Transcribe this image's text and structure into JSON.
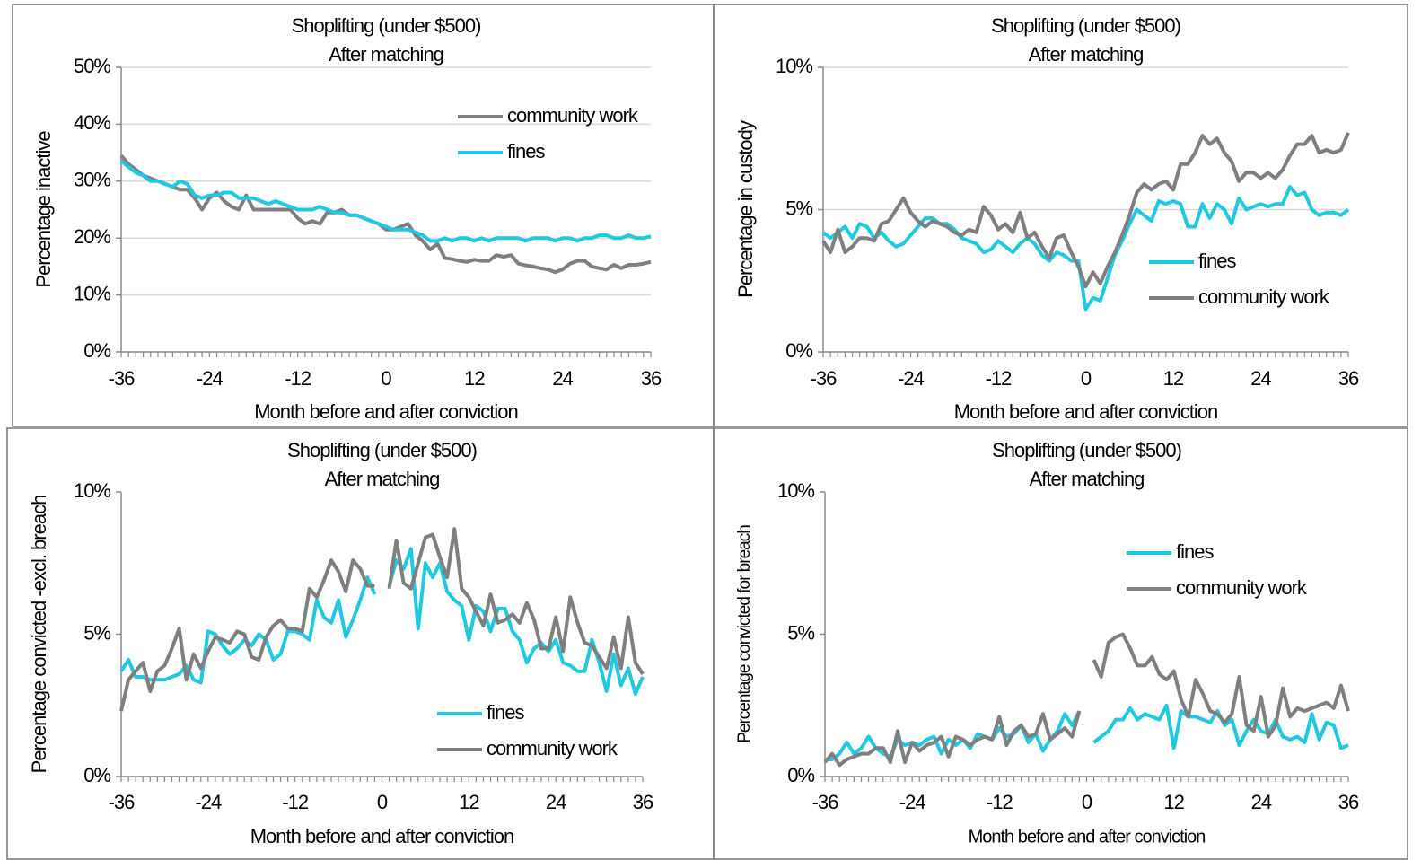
{
  "chart_data": [
    {
      "type": "line",
      "title": "Shoplifting (under  $500)",
      "subtitle": "After matching",
      "ylabel": "Percentage inactive",
      "xlabel": "Month before and after conviction",
      "x": [
        -36,
        -35,
        -34,
        -33,
        -32,
        -31,
        -30,
        -29,
        -28,
        -27,
        -26,
        -25,
        -24,
        -23,
        -22,
        -21,
        -20,
        -19,
        -18,
        -17,
        -16,
        -15,
        -14,
        -13,
        -12,
        -11,
        -10,
        -9,
        -8,
        -7,
        -6,
        -5,
        -4,
        -3,
        -2,
        -1,
        0,
        1,
        2,
        3,
        4,
        5,
        6,
        7,
        8,
        9,
        10,
        11,
        12,
        13,
        14,
        15,
        16,
        17,
        18,
        19,
        20,
        21,
        22,
        23,
        24,
        25,
        26,
        27,
        28,
        29,
        30,
        31,
        32,
        33,
        34,
        35,
        36
      ],
      "xlim": [
        -36,
        36
      ],
      "xticks": [
        -36,
        -24,
        -12,
        0,
        12,
        24,
        36
      ],
      "ylim": [
        0,
        50
      ],
      "yticks": [
        {
          "value": 0,
          "label": "0%"
        },
        {
          "value": 10,
          "label": "10%"
        },
        {
          "value": 20,
          "label": "20%"
        },
        {
          "value": 30,
          "label": "30%"
        },
        {
          "value": 40,
          "label": "40%"
        },
        {
          "value": 50,
          "label": "50%"
        }
      ],
      "grid": true,
      "series": [
        {
          "name": "community work",
          "color": "#7f7f7f",
          "values": [
            34.5,
            33,
            32,
            31,
            30.5,
            30,
            29.5,
            29,
            28.5,
            28.5,
            27,
            25,
            27,
            28,
            26.5,
            25.5,
            25,
            27.5,
            25,
            25,
            25,
            25,
            25,
            25,
            23.5,
            22.5,
            23,
            22.5,
            24.5,
            24.5,
            25,
            24,
            24,
            23.5,
            23,
            22.5,
            21.5,
            21.5,
            22,
            22.5,
            20.5,
            19.5,
            18,
            19,
            16.5,
            16.3,
            16,
            15.8,
            16.2,
            16,
            16,
            17,
            16.7,
            17,
            15.5,
            15.2,
            15,
            14.7,
            14.5,
            14,
            14.5,
            15.5,
            16,
            16,
            15,
            14.7,
            14.5,
            15.3,
            14.7,
            15.3,
            15.3,
            15.5,
            15.8
          ]
        },
        {
          "name": "fines",
          "color": "#21c9e0",
          "values": [
            33.5,
            32.5,
            31.5,
            31,
            30,
            30,
            29.5,
            29,
            30,
            29.5,
            27.5,
            27,
            27.5,
            27.5,
            28,
            28,
            27,
            27,
            27,
            26.5,
            26,
            26.5,
            26,
            25.5,
            25,
            25,
            25,
            25.5,
            25,
            24.5,
            24.5,
            24,
            24,
            23.5,
            23,
            22.5,
            22,
            21.5,
            21.5,
            21.5,
            21,
            20.5,
            19.5,
            19.5,
            20,
            19.5,
            20,
            20,
            19.5,
            20,
            19.5,
            20,
            20,
            20,
            20,
            19.5,
            20,
            20,
            20,
            19.5,
            20,
            20,
            19.5,
            20,
            20,
            20.5,
            20.5,
            20,
            20,
            20.5,
            20,
            20,
            20.3
          ]
        }
      ]
    },
    {
      "type": "line",
      "title": "Shoplifting (under  $500)",
      "subtitle": "After matching",
      "ylabel": "Percentage in custody",
      "xlabel": "Month before and after conviction",
      "x": [
        -36,
        -35,
        -34,
        -33,
        -32,
        -31,
        -30,
        -29,
        -28,
        -27,
        -26,
        -25,
        -24,
        -23,
        -22,
        -21,
        -20,
        -19,
        -18,
        -17,
        -16,
        -15,
        -14,
        -13,
        -12,
        -11,
        -10,
        -9,
        -8,
        -7,
        -6,
        -5,
        -4,
        -3,
        -2,
        -1,
        0,
        1,
        2,
        3,
        4,
        5,
        6,
        7,
        8,
        9,
        10,
        11,
        12,
        13,
        14,
        15,
        16,
        17,
        18,
        19,
        20,
        21,
        22,
        23,
        24,
        25,
        26,
        27,
        28,
        29,
        30,
        31,
        32,
        33,
        34,
        35,
        36
      ],
      "xlim": [
        -36,
        36
      ],
      "xticks": [
        -36,
        -24,
        -12,
        0,
        12,
        24,
        36
      ],
      "ylim": [
        0,
        10
      ],
      "yticks": [
        {
          "value": 0,
          "label": "0%"
        },
        {
          "value": 5,
          "label": "5%"
        },
        {
          "value": 10,
          "label": "10%"
        }
      ],
      "grid": true,
      "series": [
        {
          "name": "fines",
          "color": "#21c9e0",
          "values": [
            4.2,
            4.0,
            4.2,
            4.4,
            4.0,
            4.5,
            4.4,
            4.0,
            4.2,
            3.9,
            3.7,
            3.8,
            4.1,
            4.4,
            4.7,
            4.7,
            4.5,
            4.5,
            4.3,
            4.0,
            3.9,
            3.8,
            3.5,
            3.6,
            3.9,
            3.7,
            3.5,
            3.8,
            4.0,
            3.8,
            3.4,
            3.2,
            3.5,
            3.4,
            3.2,
            3.2,
            1.5,
            1.9,
            1.8,
            2.6,
            3.4,
            3.9,
            4.5,
            5.0,
            4.8,
            4.6,
            5.3,
            5.2,
            5.3,
            5.2,
            4.4,
            4.4,
            5.2,
            4.7,
            5.2,
            5.0,
            4.5,
            5.4,
            5.0,
            5.1,
            5.2,
            5.1,
            5.2,
            5.2,
            5.8,
            5.5,
            5.6,
            5.0,
            4.8,
            4.9,
            4.9,
            4.8,
            5.0
          ]
        },
        {
          "name": "community work",
          "color": "#7f7f7f",
          "values": [
            3.9,
            3.5,
            4.3,
            3.5,
            3.7,
            4.0,
            4.0,
            3.9,
            4.5,
            4.6,
            5.0,
            5.4,
            4.9,
            4.6,
            4.4,
            4.6,
            4.5,
            4.4,
            4.2,
            4.1,
            4.3,
            4.2,
            5.1,
            4.8,
            4.3,
            4.5,
            4.2,
            4.9,
            4.0,
            4.2,
            3.7,
            3.3,
            4.0,
            4.1,
            3.5,
            3.0,
            2.3,
            2.8,
            2.4,
            3.0,
            3.5,
            4.1,
            4.8,
            5.6,
            5.9,
            5.7,
            5.9,
            6.0,
            5.7,
            6.6,
            6.6,
            7.0,
            7.6,
            7.3,
            7.5,
            7.0,
            6.7,
            6.0,
            6.3,
            6.3,
            6.1,
            6.3,
            6.1,
            6.4,
            6.9,
            7.3,
            7.3,
            7.6,
            7.0,
            7.1,
            7.0,
            7.1,
            7.7
          ]
        }
      ]
    },
    {
      "type": "line",
      "title": "Shoplifting (under $500)",
      "subtitle": "After matching",
      "ylabel": "Percentage convicted -excl. breach",
      "xlabel": "Month before and after conviction",
      "x": [
        -36,
        -35,
        -34,
        -33,
        -32,
        -31,
        -30,
        -29,
        -28,
        -27,
        -26,
        -25,
        -24,
        -23,
        -22,
        -21,
        -20,
        -19,
        -18,
        -17,
        -16,
        -15,
        -14,
        -13,
        -12,
        -11,
        -10,
        -9,
        -8,
        -7,
        -6,
        -5,
        -4,
        -3,
        -2,
        -1,
        0,
        1,
        2,
        3,
        4,
        5,
        6,
        7,
        8,
        9,
        10,
        11,
        12,
        13,
        14,
        15,
        16,
        17,
        18,
        19,
        20,
        21,
        22,
        23,
        24,
        25,
        26,
        27,
        28,
        29,
        30,
        31,
        32,
        33,
        34,
        35,
        36
      ],
      "xlim": [
        -36,
        36
      ],
      "xticks": [
        -36,
        -24,
        -12,
        0,
        12,
        24,
        36
      ],
      "ylim": [
        0,
        10
      ],
      "yticks": [
        {
          "value": 0,
          "label": "0%"
        },
        {
          "value": 5,
          "label": "5%"
        },
        {
          "value": 10,
          "label": "10%"
        }
      ],
      "grid": false,
      "series": [
        {
          "name": "fines",
          "color": "#21c9e0",
          "values": [
            3.7,
            4.1,
            3.5,
            3.5,
            3.4,
            3.4,
            3.4,
            3.5,
            3.6,
            3.9,
            3.4,
            3.3,
            5.1,
            5.0,
            4.6,
            4.3,
            4.5,
            4.8,
            4.6,
            5.0,
            4.8,
            4.1,
            4.3,
            5.1,
            5.1,
            5.0,
            4.8,
            6.2,
            5.6,
            5.4,
            6.2,
            4.9,
            5.5,
            6.2,
            7.0,
            6.4,
            null,
            6.7,
            7.6,
            7.3,
            8.0,
            5.2,
            7.5,
            7.0,
            7.5,
            6.5,
            6.2,
            6.0,
            4.8,
            6.0,
            5.8,
            5.1,
            5.9,
            5.9,
            5.1,
            4.8,
            4.0,
            4.5,
            4.7,
            4.4,
            4.8,
            4.0,
            3.9,
            3.7,
            3.7,
            4.8,
            4.0,
            3.0,
            4.3,
            3.2,
            3.8,
            2.9,
            3.5
          ]
        },
        {
          "name": "community work",
          "color": "#7f7f7f",
          "values": [
            2.3,
            3.4,
            3.7,
            4.0,
            3.0,
            3.7,
            3.9,
            4.5,
            5.2,
            3.4,
            4.3,
            3.8,
            4.4,
            4.9,
            4.8,
            4.7,
            5.1,
            5.0,
            4.2,
            4.1,
            4.9,
            5.3,
            5.5,
            5.2,
            5.2,
            5.1,
            6.6,
            6.3,
            6.9,
            7.6,
            7.2,
            6.5,
            7.6,
            7.3,
            6.7,
            6.7,
            null,
            6.6,
            8.3,
            6.8,
            6.6,
            7.5,
            8.4,
            8.5,
            7.7,
            7.0,
            8.7,
            6.6,
            6.3,
            5.8,
            5.3,
            6.4,
            5.4,
            5.5,
            5.7,
            5.4,
            6.1,
            5.5,
            4.5,
            4.5,
            5.6,
            4.4,
            6.3,
            5.4,
            4.7,
            4.6,
            4.2,
            3.8,
            4.9,
            3.8,
            5.6,
            4.0,
            3.6
          ]
        }
      ]
    },
    {
      "type": "line",
      "title": "Shoplifting (under  $500)",
      "subtitle": "After matching",
      "ylabel": "Percentage convicted  for breach",
      "xlabel": "Month before and  after conviction",
      "x": [
        -36,
        -35,
        -34,
        -33,
        -32,
        -31,
        -30,
        -29,
        -28,
        -27,
        -26,
        -25,
        -24,
        -23,
        -22,
        -21,
        -20,
        -19,
        -18,
        -17,
        -16,
        -15,
        -14,
        -13,
        -12,
        -11,
        -10,
        -9,
        -8,
        -7,
        -6,
        -5,
        -4,
        -3,
        -2,
        -1,
        0,
        1,
        2,
        3,
        4,
        5,
        6,
        7,
        8,
        9,
        10,
        11,
        12,
        13,
        14,
        15,
        16,
        17,
        18,
        19,
        20,
        21,
        22,
        23,
        24,
        25,
        26,
        27,
        28,
        29,
        30,
        31,
        32,
        33,
        34,
        35,
        36
      ],
      "xlim": [
        -36,
        36
      ],
      "xticks": [
        -36,
        -24,
        -12,
        0,
        12,
        24,
        36
      ],
      "ylim": [
        0,
        10
      ],
      "yticks": [
        {
          "value": 0,
          "label": "0%"
        },
        {
          "value": 5,
          "label": "5%"
        },
        {
          "value": 10,
          "label": "10%"
        }
      ],
      "grid": false,
      "series": [
        {
          "name": "fines",
          "color": "#21c9e0",
          "values": [
            0.6,
            0.6,
            0.8,
            1.2,
            0.8,
            1.0,
            1.4,
            1.0,
            0.8,
            0.7,
            1.3,
            1.1,
            1.2,
            1.1,
            1.3,
            1.4,
            0.8,
            1.3,
            1.1,
            1.3,
            1.0,
            1.5,
            1.4,
            1.3,
            1.7,
            1.4,
            1.5,
            1.8,
            1.2,
            1.5,
            0.9,
            1.3,
            1.6,
            2.2,
            1.8,
            2.3,
            null,
            1.2,
            1.4,
            1.6,
            2.0,
            2.0,
            2.4,
            2.0,
            2.2,
            2.1,
            2.0,
            2.5,
            1.0,
            2.3,
            2.1,
            2.1,
            2.0,
            1.9,
            2.3,
            1.8,
            2.0,
            1.1,
            1.6,
            2.0,
            1.6,
            1.5,
            2.0,
            1.4,
            1.3,
            1.4,
            1.2,
            2.2,
            1.3,
            1.9,
            1.8,
            1.0,
            1.1
          ]
        },
        {
          "name": "community work",
          "color": "#7f7f7f",
          "values": [
            0.5,
            0.8,
            0.4,
            0.6,
            0.7,
            0.8,
            0.8,
            1.0,
            1.0,
            0.5,
            1.6,
            0.5,
            1.2,
            0.9,
            1.1,
            1.2,
            1.4,
            0.7,
            1.4,
            1.3,
            1.1,
            1.3,
            1.4,
            1.3,
            2.1,
            1.1,
            1.6,
            1.8,
            1.4,
            1.5,
            2.2,
            1.3,
            1.5,
            1.7,
            1.4,
            2.3,
            null,
            4.1,
            3.5,
            4.7,
            4.9,
            5.0,
            4.5,
            3.9,
            3.9,
            4.2,
            3.6,
            3.4,
            3.7,
            2.7,
            2.1,
            3.4,
            2.9,
            2.3,
            2.2,
            1.9,
            2.2,
            3.5,
            1.8,
            1.6,
            2.8,
            1.4,
            1.8,
            3.1,
            2.1,
            2.4,
            2.3,
            2.4,
            2.5,
            2.6,
            2.4,
            3.2,
            2.3
          ]
        }
      ]
    }
  ]
}
